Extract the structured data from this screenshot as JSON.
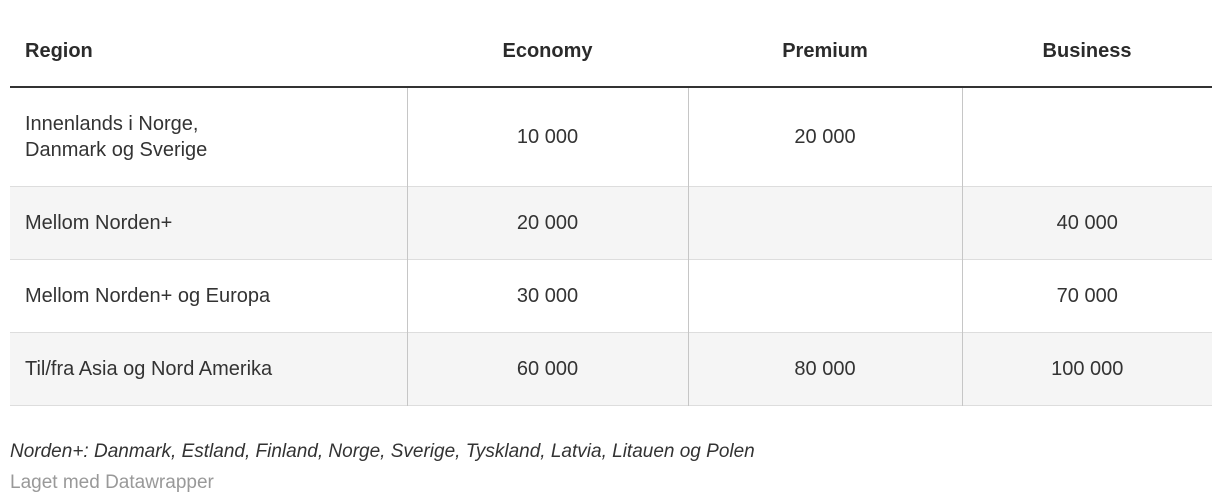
{
  "header": {
    "columns": [
      {
        "label": "Region"
      },
      {
        "label": "Economy"
      },
      {
        "label": "Premium"
      },
      {
        "label": "Business"
      }
    ]
  },
  "table": {
    "rows": [
      {
        "region": "Innenlands i Norge,\nDanmark og Sverige",
        "economy": "10 000",
        "premium": "20 000",
        "business": ""
      },
      {
        "region": "Mellom Norden+",
        "economy": "20 000",
        "premium": "",
        "business": "40 000"
      },
      {
        "region": "Mellom Norden+ og Europa",
        "economy": "30 000",
        "premium": "",
        "business": "70 000"
      },
      {
        "region": "Til/fra Asia og Nord Amerika",
        "economy": "60 000",
        "premium": "80 000",
        "business": "100 000"
      }
    ]
  },
  "footer": {
    "footnote": "Norden+: Danmark, Estland, Finland, Norge, Sverige, Tyskland, Latvia, Litauen og Polen",
    "attribution": "Laget med Datawrapper"
  },
  "colors": {
    "header_rule": "#333333",
    "zebra_row": "#f5f5f5",
    "row_divider": "#dddddd",
    "column_divider": "#c6c6c6",
    "body_text": "#333333",
    "header_text": "#2b2b2b",
    "attribution_text": "#999999"
  },
  "chart_data": {
    "type": "table",
    "title": "",
    "columns": [
      "Region",
      "Economy",
      "Premium",
      "Business"
    ],
    "rows": [
      [
        "Innenlands i Norge, Danmark og Sverige",
        10000,
        20000,
        null
      ],
      [
        "Mellom Norden+",
        20000,
        null,
        40000
      ],
      [
        "Mellom Norden+ og Europa",
        30000,
        null,
        70000
      ],
      [
        "Til/fra Asia og Nord Amerika",
        60000,
        80000,
        100000
      ]
    ],
    "number_format": "space-separated thousands",
    "layout_hints": {
      "region_column_align": "left",
      "value_columns_align": "center",
      "zebra_striping": "rows 2 and 4 shaded",
      "column_dividers_body_only": true
    },
    "footnote": "Norden+: Danmark, Estland, Finland, Norge, Sverige, Tyskland, Latvia, Litauen og Polen",
    "attribution": "Laget med Datawrapper"
  }
}
